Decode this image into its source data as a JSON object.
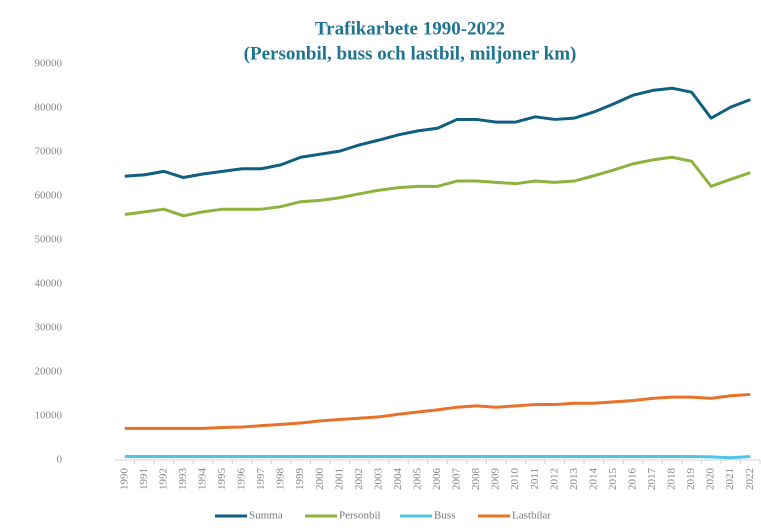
{
  "chart_data": {
    "type": "line",
    "title": [
      "Trafikarbete 1990-2022",
      "(Personbil, buss och lastbil, miljoner km)"
    ],
    "categories": [
      "1990",
      "1991",
      "1992",
      "1993",
      "1994",
      "1995",
      "1996",
      "1997",
      "1998",
      "1999",
      "2000",
      "2001",
      "2002",
      "2003",
      "2004",
      "2005",
      "2006",
      "2007",
      "2008",
      "2009",
      "2010",
      "2011",
      "2012",
      "2013",
      "2014",
      "2015",
      "2016",
      "2017",
      "2018",
      "2019",
      "2020",
      "2021",
      "2022"
    ],
    "series": [
      {
        "name": "Summa",
        "color": "#0f5f80",
        "values": [
          64500,
          64800,
          65600,
          64200,
          65000,
          65600,
          66200,
          66200,
          67100,
          68800,
          69500,
          70200,
          71600,
          72700,
          73900,
          74800,
          75400,
          77400,
          77400,
          76800,
          76800,
          78000,
          77400,
          77700,
          79100,
          80900,
          82900,
          84000,
          84500,
          83600,
          77700,
          80200,
          81900
        ]
      },
      {
        "name": "Personbil",
        "color": "#8db33f",
        "values": [
          55800,
          56400,
          57000,
          55500,
          56400,
          57000,
          57000,
          57000,
          57600,
          58700,
          59000,
          59600,
          60500,
          61300,
          61900,
          62200,
          62200,
          63400,
          63400,
          63100,
          62800,
          63400,
          63100,
          63400,
          64600,
          65900,
          67300,
          68200,
          68800,
          67900,
          62200,
          63800,
          65300
        ]
      },
      {
        "name": "Buss",
        "color": "#4dc4ea",
        "values": [
          800,
          800,
          800,
          800,
          800,
          800,
          800,
          800,
          800,
          800,
          800,
          800,
          800,
          800,
          800,
          800,
          800,
          800,
          800,
          800,
          800,
          800,
          800,
          800,
          800,
          800,
          800,
          800,
          800,
          800,
          700,
          500,
          800
        ]
      },
      {
        "name": "Lastbilar",
        "color": "#e8722a",
        "values": [
          7200,
          7200,
          7200,
          7200,
          7200,
          7400,
          7500,
          7800,
          8100,
          8400,
          8900,
          9200,
          9500,
          9800,
          10400,
          10900,
          11400,
          12000,
          12300,
          12000,
          12300,
          12600,
          12600,
          12900,
          12900,
          13200,
          13500,
          14000,
          14300,
          14300,
          14000,
          14600,
          14900
        ]
      }
    ],
    "ylim": [
      0,
      90000
    ],
    "yticks": [
      0,
      10000,
      20000,
      30000,
      40000,
      50000,
      60000,
      70000,
      80000,
      90000
    ],
    "legend": "bottom"
  }
}
